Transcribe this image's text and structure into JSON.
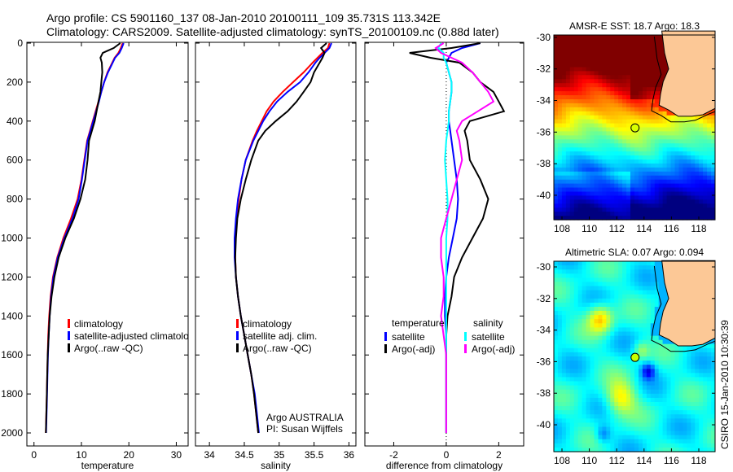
{
  "title_line1": "Argo profile: CS 5901160_137 08-Jan-2010 20100111_109 35.731S 113.342E",
  "title_line2": "Climatology: CARS2009. Satellite-adjusted climatology: synTS_20100109.nc (0.88d later)",
  "footer": "CSIRO 15-Jan-2010 10:30:39",
  "colors": {
    "climatology": "#ff0000",
    "satellite": "#0000ff",
    "argo": "#000000",
    "sal_satellite": "#00ffff",
    "sal_argo": "#ff00ff",
    "land": "#fcc896"
  },
  "chart_data": [
    {
      "type": "line",
      "xlabel": "temperature",
      "ylabel": "",
      "xlim": [
        -1.5,
        32.5
      ],
      "ylim": [
        2066,
        0
      ],
      "xticks": [
        "0",
        "10",
        "20",
        "30"
      ],
      "yticks": [
        "0",
        "200",
        "400",
        "600",
        "800",
        "1000",
        "1200",
        "1400",
        "1600",
        "1800",
        "2000"
      ],
      "depth": [
        0,
        25,
        50,
        75,
        100,
        150,
        200,
        250,
        300,
        350,
        400,
        450,
        500,
        600,
        700,
        800,
        900,
        1000,
        1100,
        1200,
        1300,
        1400,
        1500,
        1600,
        1700,
        1800,
        1900,
        2000
      ],
      "series": [
        {
          "name": "climatology",
          "color": "#ff0000",
          "values": [
            18.7,
            18.3,
            17.8,
            17,
            16.5,
            15.5,
            14.8,
            14.2,
            13.6,
            13,
            12.4,
            11.8,
            11.2,
            10.6,
            10,
            9.2,
            7.8,
            6.2,
            4.9,
            4,
            3.5,
            3.2,
            3,
            2.9,
            2.8,
            2.7,
            2.6,
            2.5
          ]
        },
        {
          "name": "satellite-adjusted climatology",
          "color": "#0000ff",
          "values": [
            18.9,
            18.5,
            18,
            17.1,
            16.6,
            15.6,
            14.8,
            14.2,
            13.7,
            13.1,
            12.5,
            11.9,
            11.3,
            10.7,
            10.1,
            9.4,
            8.1,
            6.4,
            5,
            4.1,
            3.6,
            3.3,
            3.1,
            2.95,
            2.85,
            2.75,
            2.65,
            2.55
          ]
        },
        {
          "name": "Argo(..raw -QC)",
          "color": "#000000",
          "values": [
            18.2,
            16.8,
            14.5,
            14,
            14.3,
            14.4,
            14.2,
            14,
            13.6,
            13.2,
            12.8,
            12.2,
            11.6,
            11.3,
            10.8,
            9.8,
            8.4,
            6.6,
            5.2,
            4.3,
            3.7,
            3.3,
            3.1,
            2.9,
            2.8,
            2.7,
            2.6,
            2.5
          ]
        }
      ]
    },
    {
      "type": "line",
      "xlabel": "salinity",
      "xlim": [
        33.8,
        36.1
      ],
      "ylim": [
        2066,
        0
      ],
      "xticks": [
        "34",
        "34.5",
        "35",
        "35.5",
        "36"
      ],
      "annotations": [
        "Argo AUSTRALIA",
        "PI: Susan Wijffels"
      ],
      "series": [
        {
          "name": "climatology",
          "color": "#ff0000",
          "values": [
            35.72,
            35.7,
            35.62,
            35.55,
            35.48,
            35.35,
            35.2,
            35.05,
            34.92,
            34.82,
            34.75,
            34.68,
            34.62,
            34.52,
            34.46,
            34.42,
            34.39,
            34.37,
            34.37,
            34.38,
            34.41,
            34.45,
            34.5,
            34.55,
            34.6,
            34.64,
            34.67,
            34.7
          ]
        },
        {
          "name": "satellite adj. clim.",
          "color": "#0000ff",
          "values": [
            35.75,
            35.72,
            35.65,
            35.58,
            35.52,
            35.42,
            35.3,
            35.12,
            34.97,
            34.86,
            34.77,
            34.7,
            34.63,
            34.52,
            34.46,
            34.41,
            34.38,
            34.36,
            34.36,
            34.38,
            34.41,
            34.45,
            34.5,
            34.55,
            34.6,
            34.65,
            34.68,
            34.71
          ]
        },
        {
          "name": "Argo(..raw -QC)",
          "color": "#000000",
          "values": [
            35.68,
            35.6,
            35.65,
            35.62,
            35.58,
            35.5,
            35.45,
            35.35,
            35.25,
            35.12,
            34.95,
            34.8,
            34.7,
            34.6,
            34.52,
            34.45,
            34.4,
            34.38,
            34.37,
            34.38,
            34.41,
            34.45,
            34.5,
            34.55,
            34.6,
            34.64,
            34.67,
            34.7
          ]
        }
      ]
    },
    {
      "type": "line",
      "xlabel": "difference from climatology",
      "xlim": [
        -3.1,
        2.95
      ],
      "ylim": [
        2066,
        0
      ],
      "xticks": [
        "-2",
        "0",
        "2"
      ],
      "legend_headers": [
        "temperature",
        "salinity"
      ],
      "series": [
        {
          "name": "satellite",
          "group": "temperature",
          "color": "#0000ff",
          "values": [
            1.3,
            0.6,
            0.2,
            0.1,
            0,
            0.1,
            0.2,
            0.2,
            0.15,
            0.1,
            0.1,
            0.15,
            0.2,
            0.3,
            0.4,
            0.45,
            0.4,
            0.25,
            0.1,
            0,
            -0.05,
            -0.05,
            0,
            0,
            0,
            0,
            0,
            0
          ]
        },
        {
          "name": "Argo(-adj)",
          "group": "temperature",
          "color": "#000000",
          "values": [
            1.3,
            0.2,
            -1.4,
            -0.6,
            0.5,
            1.0,
            1.3,
            1.8,
            2.0,
            2.2,
            0.9,
            0.7,
            0.8,
            0.9,
            1.3,
            1.6,
            1.4,
            1.0,
            0.6,
            0.3,
            0.2,
            0.05,
            0,
            0,
            0,
            0,
            0,
            0
          ]
        },
        {
          "name": "satellite",
          "group": "salinity",
          "color": "#00ffff",
          "values": [
            -0.2,
            -0.3,
            -0.1,
            -0.1,
            0,
            0.1,
            0.2,
            0.2,
            0.15,
            0.1,
            0.1,
            0.05,
            0,
            -0.05,
            0,
            0.05,
            0.05,
            0,
            0,
            0,
            0,
            0,
            0,
            0,
            0,
            0,
            0,
            0
          ]
        },
        {
          "name": "Argo(-adj)",
          "group": "salinity",
          "color": "#ff00ff",
          "values": [
            -0.1,
            -0.4,
            -0.2,
            0.2,
            0.6,
            1.0,
            1.3,
            1.6,
            1.8,
            1.2,
            0.6,
            0.4,
            0.5,
            0.6,
            0.4,
            0.2,
            0,
            -0.2,
            -0.2,
            -0.1,
            -0.1,
            -0.2,
            -0.1,
            0,
            0,
            0,
            0,
            0
          ]
        }
      ]
    },
    {
      "type": "heatmap",
      "title": "AMSR-E SST: 18.7 Argo: 18.3",
      "field": "sst",
      "xticks": [
        "108",
        "110",
        "112",
        "114",
        "116",
        "118"
      ],
      "yticks": [
        "-30",
        "-32",
        "-34",
        "-36",
        "-38",
        "-40"
      ],
      "argo_position": [
        113.342,
        -35.731
      ]
    },
    {
      "type": "heatmap",
      "title": "Altimetric SLA: 0.07 Argo: 0.094",
      "field": "sla",
      "xticks": [
        "108",
        "110",
        "112",
        "114",
        "116",
        "118"
      ],
      "yticks": [
        "-30",
        "-32",
        "-34",
        "-36",
        "-38",
        "-40"
      ],
      "argo_position": [
        113.342,
        -35.731
      ]
    }
  ]
}
